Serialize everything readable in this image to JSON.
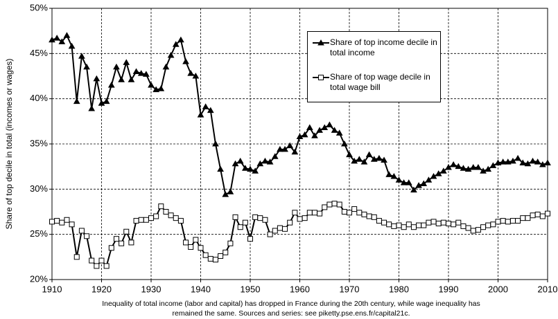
{
  "chart_data": {
    "type": "line",
    "y_label": "Share of top decile in total (incomes or wages)",
    "caption": [
      "Inequality of total income (labor and capital) has dropped in France during the 20th century, while wage inequality has",
      "remained the same. Sources and series: see piketty.pse.ens.fr/capital21c."
    ],
    "x": [
      1910,
      1911,
      1912,
      1913,
      1914,
      1915,
      1916,
      1917,
      1918,
      1919,
      1920,
      1921,
      1922,
      1923,
      1924,
      1925,
      1926,
      1927,
      1928,
      1929,
      1930,
      1931,
      1932,
      1933,
      1934,
      1935,
      1936,
      1937,
      1938,
      1939,
      1940,
      1941,
      1942,
      1943,
      1944,
      1945,
      1946,
      1947,
      1948,
      1949,
      1950,
      1951,
      1952,
      1953,
      1954,
      1955,
      1956,
      1957,
      1958,
      1959,
      1960,
      1961,
      1962,
      1963,
      1964,
      1965,
      1966,
      1967,
      1968,
      1969,
      1970,
      1971,
      1972,
      1973,
      1974,
      1975,
      1976,
      1977,
      1978,
      1979,
      1980,
      1981,
      1982,
      1983,
      1984,
      1985,
      1986,
      1987,
      1988,
      1989,
      1990,
      1991,
      1992,
      1993,
      1994,
      1995,
      1996,
      1997,
      1998,
      1999,
      2000,
      2001,
      2002,
      2003,
      2004,
      2005,
      2006,
      2007,
      2008,
      2009,
      2010
    ],
    "series": [
      {
        "name": "Share of top income decile in total income",
        "color": "#000000",
        "marker": "triangle",
        "marker_fill": "#000000",
        "values": [
          46.5,
          46.7,
          46.3,
          47.0,
          45.8,
          39.7,
          44.7,
          43.5,
          38.9,
          42.2,
          39.5,
          39.7,
          41.5,
          43.5,
          42.1,
          44.0,
          42.1,
          43.0,
          42.8,
          42.7,
          41.5,
          41.0,
          41.1,
          43.5,
          44.8,
          46.0,
          46.5,
          44.1,
          42.8,
          42.5,
          38.2,
          39.1,
          38.7,
          35.0,
          32.2,
          29.4,
          29.7,
          32.8,
          33.1,
          32.3,
          32.2,
          32.0,
          32.8,
          33.1,
          33.0,
          33.6,
          34.4,
          34.4,
          34.8,
          34.1,
          35.8,
          36.0,
          36.8,
          35.9,
          36.5,
          36.8,
          37.1,
          36.5,
          36.2,
          35.0,
          33.8,
          33.1,
          33.3,
          33.0,
          33.8,
          33.3,
          33.4,
          33.2,
          31.6,
          31.4,
          31.0,
          30.7,
          30.7,
          29.9,
          30.4,
          30.6,
          31.0,
          31.4,
          31.7,
          32.0,
          32.4,
          32.7,
          32.5,
          32.3,
          32.2,
          32.4,
          32.4,
          32.0,
          32.2,
          32.6,
          32.9,
          33.0,
          33.0,
          33.1,
          33.4,
          32.9,
          32.8,
          33.1,
          33.0,
          32.7,
          32.9
        ]
      },
      {
        "name": "Share of top wage decile in total wage bill",
        "color": "#000000",
        "marker": "square",
        "marker_fill": "#ffffff",
        "values": [
          26.4,
          26.5,
          26.3,
          26.6,
          26.1,
          22.5,
          25.4,
          24.8,
          22.1,
          21.5,
          22.1,
          21.5,
          23.5,
          24.5,
          24.0,
          25.3,
          24.1,
          26.5,
          26.6,
          26.6,
          26.8,
          27.0,
          28.1,
          27.5,
          27.1,
          26.8,
          26.5,
          24.1,
          23.6,
          24.4,
          23.5,
          22.7,
          22.3,
          22.2,
          22.6,
          23.0,
          24.0,
          26.9,
          25.8,
          26.3,
          24.5,
          26.9,
          26.8,
          26.6,
          25.0,
          25.4,
          25.7,
          25.6,
          26.3,
          27.4,
          26.7,
          26.8,
          27.4,
          27.4,
          27.3,
          28.0,
          28.3,
          28.4,
          28.3,
          27.5,
          27.4,
          27.8,
          27.4,
          27.2,
          27.0,
          26.9,
          26.5,
          26.3,
          26.1,
          25.9,
          26.0,
          25.8,
          26.1,
          25.8,
          26.0,
          26.0,
          26.3,
          26.4,
          26.2,
          26.3,
          26.2,
          26.1,
          26.3,
          25.9,
          25.7,
          25.4,
          25.5,
          25.8,
          26.0,
          26.1,
          26.4,
          26.5,
          26.4,
          26.5,
          26.5,
          26.8,
          26.8,
          27.1,
          27.2,
          27.0,
          27.3
        ]
      }
    ],
    "xlim": [
      1910,
      2010
    ],
    "xticks": [
      1910,
      1920,
      1930,
      1940,
      1950,
      1960,
      1970,
      1980,
      1990,
      2000,
      2010
    ],
    "ylim": [
      20,
      50
    ],
    "yticks": [
      {
        "value": 20,
        "label": "20%"
      },
      {
        "value": 25,
        "label": "25%"
      },
      {
        "value": 30,
        "label": "30%"
      },
      {
        "value": 35,
        "label": "35%"
      },
      {
        "value": 40,
        "label": "40%"
      },
      {
        "value": 45,
        "label": "45%"
      },
      {
        "value": 50,
        "label": "50%"
      }
    ],
    "grid": true,
    "legend": "upper right"
  }
}
